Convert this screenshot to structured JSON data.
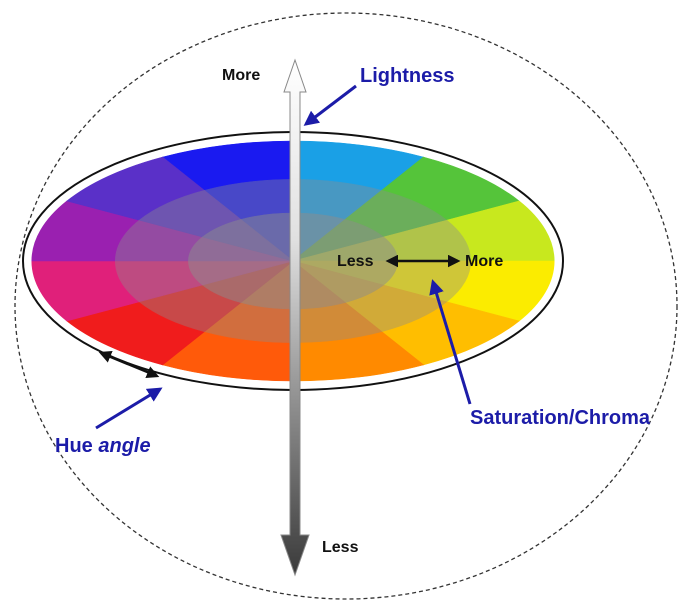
{
  "labels": {
    "lightness": {
      "title": "Lightness",
      "top": "More",
      "bottom": "Less"
    },
    "saturation": {
      "title": "Saturation/Chroma",
      "inner": "Less",
      "outer": "More"
    },
    "hue": {
      "title": "Hue",
      "emphasis": "angle"
    }
  }
}
